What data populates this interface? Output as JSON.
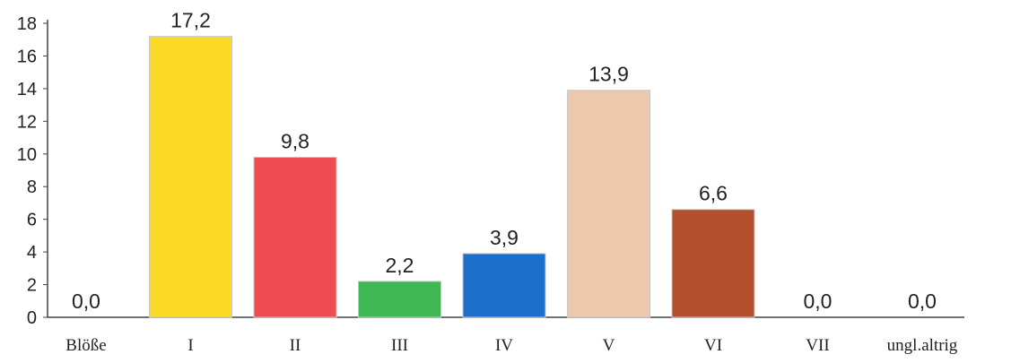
{
  "chart_data": {
    "type": "bar",
    "categories": [
      "Blöße",
      "I",
      "II",
      "III",
      "IV",
      "V",
      "VI",
      "VII",
      "ungl.altrig"
    ],
    "values": [
      0.0,
      17.2,
      9.8,
      2.2,
      3.9,
      13.9,
      6.6,
      0.0,
      0.0
    ],
    "value_labels": [
      "0,0",
      "17,2",
      "9,8",
      "2,2",
      "3,9",
      "13,9",
      "6,6",
      "0,0",
      "0,0"
    ],
    "colors": [
      "#ffffff",
      "#fbd927",
      "#ef4b52",
      "#3fb854",
      "#1e6fcc",
      "#ecc9ad",
      "#b4502e",
      "#ffffff",
      "#ffffff"
    ],
    "yticks": [
      "0",
      "2",
      "4",
      "6",
      "8",
      "10",
      "12",
      "14",
      "16",
      "18"
    ],
    "ylim": [
      0,
      18
    ],
    "grid": false,
    "title": "",
    "xlabel": "",
    "ylabel": ""
  }
}
